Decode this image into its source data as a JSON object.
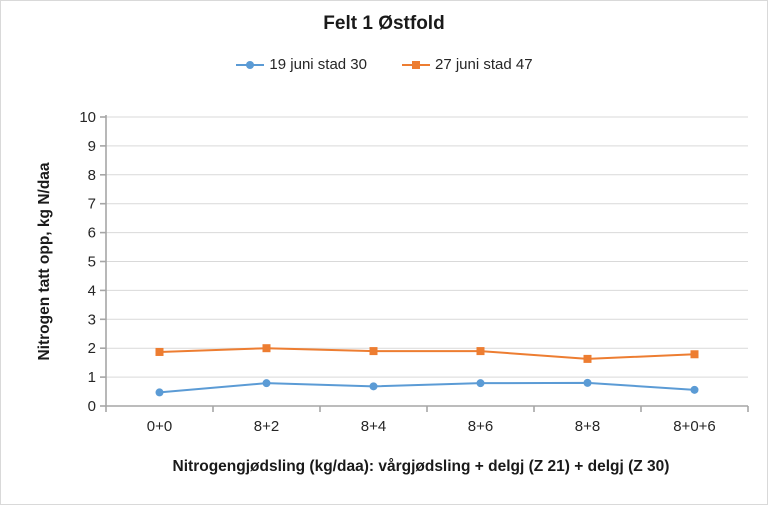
{
  "chart_data": {
    "type": "line",
    "title": "Felt 1 Østfold",
    "categories": [
      "0+0",
      "8+2",
      "8+4",
      "8+6",
      "8+8",
      "8+0+6"
    ],
    "series": [
      {
        "name": "19 juni stad 30",
        "color": "#5B9BD5",
        "marker": "circle",
        "values": [
          0.47,
          0.79,
          0.68,
          0.79,
          0.8,
          0.56
        ]
      },
      {
        "name": "27 juni stad 47",
        "color": "#ED7D31",
        "marker": "square",
        "values": [
          1.87,
          2.0,
          1.9,
          1.9,
          1.63,
          1.79
        ]
      }
    ],
    "xlabel": "Nitrogengjødsling (kg/daa): vårgjødsling + delgj (Z 21) + delgj (Z 30)",
    "ylabel": "Nitrogen tatt opp, kg N/daa",
    "ylim": [
      0,
      10
    ],
    "ytick_step": 1,
    "grid": true,
    "legend_position": "top",
    "colors": {
      "gridline": "#D9D9D9",
      "axis": "#A6A6A6",
      "text": "#262626"
    }
  }
}
